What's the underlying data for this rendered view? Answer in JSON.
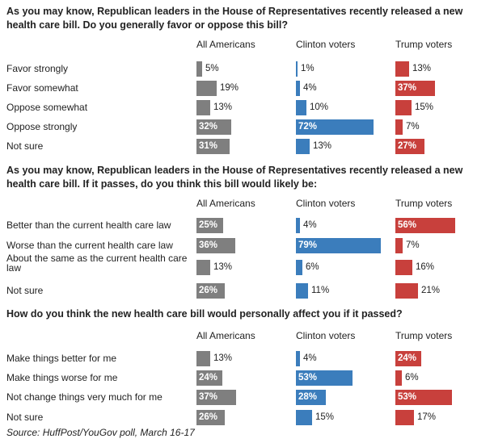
{
  "colors": {
    "all": "#7f7f7f",
    "clinton": "#3b7dbc",
    "trump": "#c8403c"
  },
  "chart_data": [
    {
      "type": "bar",
      "title": "As you may know, Republican leaders in the House of Representatives recently released a new health care bill. Do you generally favor or oppose this bill?",
      "categories": [
        "Favor strongly",
        "Favor somewhat",
        "Oppose somewhat",
        "Oppose strongly",
        "Not sure"
      ],
      "series": [
        {
          "name": "All Americans",
          "values": [
            5,
            19,
            13,
            32,
            31
          ]
        },
        {
          "name": "Clinton voters",
          "values": [
            1,
            4,
            10,
            72,
            13
          ]
        },
        {
          "name": "Trump voters",
          "values": [
            13,
            37,
            15,
            7,
            27
          ]
        }
      ]
    },
    {
      "type": "bar",
      "title": "As you may know, Republican leaders in the House of Representatives recently released a new health care bill. If it passes, do you think this bill would likely be:",
      "categories": [
        "Better than the current health care law",
        "Worse than the current health care law",
        "About the same as the current health care law",
        "Not sure"
      ],
      "series": [
        {
          "name": "All Americans",
          "values": [
            25,
            36,
            13,
            26
          ]
        },
        {
          "name": "Clinton voters",
          "values": [
            4,
            79,
            6,
            11
          ]
        },
        {
          "name": "Trump voters",
          "values": [
            56,
            7,
            16,
            21
          ]
        }
      ]
    },
    {
      "type": "bar",
      "title": "How do you think the new health care bill would personally affect you if it passed?",
      "categories": [
        "Make things better for me",
        "Make things worse for me",
        "Not change things very much for me",
        "Not sure"
      ],
      "series": [
        {
          "name": "All Americans",
          "values": [
            13,
            24,
            37,
            26
          ]
        },
        {
          "name": "Clinton voters",
          "values": [
            4,
            53,
            28,
            15
          ]
        },
        {
          "name": "Trump voters",
          "values": [
            24,
            6,
            53,
            17
          ]
        }
      ]
    }
  ],
  "source": "Source: HuffPost/YouGov poll, March 16-17"
}
